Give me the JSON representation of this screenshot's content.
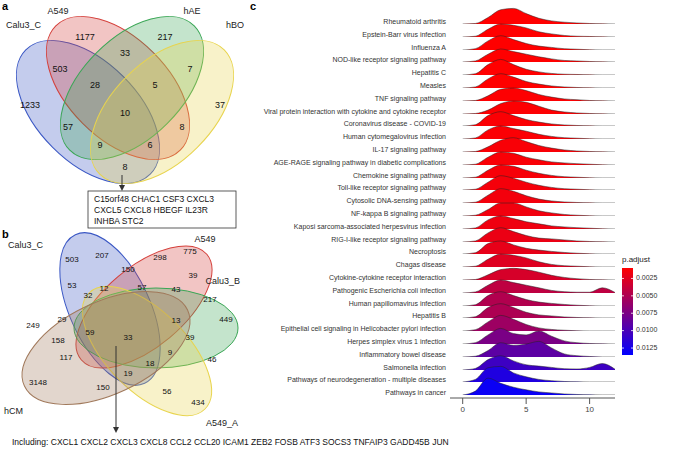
{
  "panel_a": {
    "panel_label": "a",
    "sets": [
      {
        "name": "Calu3_C",
        "color": "#3a57c4"
      },
      {
        "name": "A549",
        "color": "#d43f3a"
      },
      {
        "name": "hAE",
        "color": "#3aa655"
      },
      {
        "name": "hBO",
        "color": "#e8d44d"
      }
    ],
    "regions": [
      {
        "sets": [
          "Calu3_C"
        ],
        "count": 1233
      },
      {
        "sets": [
          "A549"
        ],
        "count": 1177
      },
      {
        "sets": [
          "hAE"
        ],
        "count": 217
      },
      {
        "sets": [
          "hBO"
        ],
        "count": 37
      },
      {
        "sets": [
          "Calu3_C",
          "A549"
        ],
        "count": 503
      },
      {
        "sets": [
          "A549",
          "hAE"
        ],
        "count": 33
      },
      {
        "sets": [
          "hAE",
          "hBO"
        ],
        "count": 7
      },
      {
        "sets": [
          "Calu3_C",
          "A549",
          "hAE"
        ],
        "count": 28
      },
      {
        "sets": [
          "A549",
          "hAE",
          "hBO"
        ],
        "count": 5
      },
      {
        "sets": [
          "Calu3_C",
          "hAE"
        ],
        "count": 57
      },
      {
        "sets": [
          "Calu3_C",
          "A549",
          "hAE",
          "hBO"
        ],
        "count": 10
      },
      {
        "sets": [
          "A549",
          "hBO"
        ],
        "count": 8
      },
      {
        "sets": [
          "Calu3_C",
          "hAE",
          "hBO"
        ],
        "count": 9
      },
      {
        "sets": [
          "Calu3_C",
          "A549",
          "hBO"
        ],
        "count": 6
      },
      {
        "sets": [
          "Calu3_C",
          "hBO"
        ],
        "count": 8
      }
    ],
    "genes": [
      "C15orf48",
      "CHAC1",
      "CSF3",
      "CXCL3",
      "CXCL5",
      "CXCL8",
      "HBEGF",
      "IL23R",
      "INHBA",
      "STC2"
    ]
  },
  "panel_b": {
    "panel_label": "b",
    "sets": [
      {
        "name": "Calu3_C",
        "color": "#3a57c4"
      },
      {
        "name": "A549",
        "color": "#d43f3a"
      },
      {
        "name": "Calu3_B",
        "color": "#3aa655"
      },
      {
        "name": "A549_A",
        "color": "#e8d44d"
      },
      {
        "name": "hCM",
        "color": "#a0785a"
      }
    ],
    "regions": [
      {
        "count": 503
      },
      {
        "count": 775
      },
      {
        "count": 449
      },
      {
        "count": 434
      },
      {
        "count": 3148
      },
      {
        "count": 207
      },
      {
        "count": 298
      },
      {
        "count": 150
      },
      {
        "count": 53
      },
      {
        "count": 32
      },
      {
        "count": 12
      },
      {
        "count": 57
      },
      {
        "count": 43
      },
      {
        "count": 39
      },
      {
        "count": 217
      },
      {
        "count": 249
      },
      {
        "count": 29
      },
      {
        "count": 158
      },
      {
        "count": 59
      },
      {
        "count": 33
      },
      {
        "count": 13
      },
      {
        "count": 39
      },
      {
        "count": 117
      },
      {
        "count": 9
      },
      {
        "count": 46
      },
      {
        "count": 150
      },
      {
        "count": 19
      },
      {
        "count": 18
      },
      {
        "count": 56
      }
    ],
    "note": "Including: CXCL1 CXCL2 CXCL3 CXCL8 CCL2 CCL20 ICAM1 ZEB2 FOSB ATF3 SOCS3 TNFAIP3 GADD45B JUN"
  },
  "chart_data": {
    "type": "ridgeline",
    "panel_label": "c",
    "x": [
      0,
      1,
      2,
      3,
      4,
      5,
      6,
      7,
      8,
      9,
      10,
      11,
      12
    ],
    "xlim": [
      -1,
      12
    ],
    "xticks": [
      0,
      5,
      10
    ],
    "ylim": [
      0,
      1
    ],
    "tick_labels": "x",
    "grid": false,
    "colorbar": {
      "title": "p.adjust",
      "range": [
        0.001,
        0.0135
      ],
      "ticks": [
        0.0025,
        {
          "value": 0.005,
          "label": "0.0050"
        },
        {
          "value": 0.0075,
          "label": "0.0075"
        },
        {
          "value": 0.01,
          "label": "0.0100"
        },
        0.0125
      ],
      "colors": [
        "#ff0000",
        "#0000ff"
      ]
    },
    "series": [
      {
        "name": "Rheumatoid arthritis",
        "p_adjust": 0.001,
        "values": [
          0,
          0.02,
          0.25,
          0.55,
          0.6,
          0.4,
          0.22,
          0.12,
          0.07,
          0.04,
          0.02,
          0.01,
          0
        ]
      },
      {
        "name": "Epstein-Barr virus infection",
        "p_adjust": 0.001,
        "values": [
          0,
          0.03,
          0.3,
          0.5,
          0.45,
          0.35,
          0.2,
          0.12,
          0.06,
          0.03,
          0.02,
          0.01,
          0
        ]
      },
      {
        "name": "Influenza A",
        "p_adjust": 0.001,
        "values": [
          0,
          0.05,
          0.35,
          0.55,
          0.4,
          0.25,
          0.15,
          0.1,
          0.05,
          0.03,
          0.01,
          0,
          0
        ]
      },
      {
        "name": "NOD-like receptor signaling pathway",
        "p_adjust": 0.001,
        "values": [
          0,
          0.04,
          0.3,
          0.5,
          0.4,
          0.3,
          0.2,
          0.12,
          0.06,
          0.04,
          0.02,
          0.01,
          0
        ]
      },
      {
        "name": "Hepatitis C",
        "p_adjust": 0.001,
        "values": [
          0,
          0.05,
          0.4,
          0.6,
          0.4,
          0.22,
          0.12,
          0.06,
          0.03,
          0.02,
          0.01,
          0,
          0
        ]
      },
      {
        "name": "Measles",
        "p_adjust": 0.001,
        "values": [
          0,
          0.04,
          0.35,
          0.55,
          0.42,
          0.25,
          0.15,
          0.08,
          0.04,
          0.02,
          0.01,
          0,
          0
        ]
      },
      {
        "name": "TNF signaling pathway",
        "p_adjust": 0.0011,
        "values": [
          0,
          0.02,
          0.2,
          0.45,
          0.5,
          0.4,
          0.25,
          0.15,
          0.08,
          0.05,
          0.02,
          0.01,
          0
        ]
      },
      {
        "name": "Viral protein interaction with cytokine and cytokine receptor",
        "p_adjust": 0.0011,
        "values": [
          0,
          0.02,
          0.15,
          0.4,
          0.5,
          0.45,
          0.3,
          0.15,
          0.08,
          0.04,
          0.02,
          0.01,
          0
        ]
      },
      {
        "name": "Coronavirus disease - COVID-19",
        "p_adjust": 0.0012,
        "values": [
          0,
          0.05,
          0.4,
          0.55,
          0.4,
          0.25,
          0.15,
          0.08,
          0.04,
          0.02,
          0.01,
          0,
          0
        ]
      },
      {
        "name": "Human cytomegalovirus infection",
        "p_adjust": 0.0012,
        "values": [
          0,
          0.04,
          0.35,
          0.5,
          0.4,
          0.3,
          0.18,
          0.1,
          0.05,
          0.03,
          0.01,
          0,
          0
        ]
      },
      {
        "name": "IL-17 signaling pathway",
        "p_adjust": 0.0013,
        "values": [
          0,
          0.02,
          0.2,
          0.45,
          0.55,
          0.4,
          0.25,
          0.15,
          0.08,
          0.04,
          0.02,
          0.01,
          0
        ]
      },
      {
        "name": "AGE-RAGE signaling pathway in diabetic complications",
        "p_adjust": 0.0013,
        "values": [
          0,
          0.03,
          0.3,
          0.5,
          0.45,
          0.3,
          0.2,
          0.12,
          0.08,
          0.05,
          0.03,
          0.01,
          0
        ]
      },
      {
        "name": "Chemokine signaling pathway",
        "p_adjust": 0.0014,
        "values": [
          0,
          0.03,
          0.3,
          0.5,
          0.45,
          0.3,
          0.18,
          0.1,
          0.05,
          0.03,
          0.01,
          0,
          0
        ]
      },
      {
        "name": "Toll-like receptor signaling pathway",
        "p_adjust": 0.0015,
        "values": [
          0,
          0.03,
          0.3,
          0.55,
          0.45,
          0.3,
          0.18,
          0.1,
          0.05,
          0.03,
          0.01,
          0,
          0
        ]
      },
      {
        "name": "Cytosolic DNA-sensing pathway",
        "p_adjust": 0.0016,
        "values": [
          0,
          0.03,
          0.3,
          0.55,
          0.45,
          0.28,
          0.15,
          0.08,
          0.04,
          0.02,
          0.01,
          0,
          0
        ]
      },
      {
        "name": "NF-kappa B signaling pathway",
        "p_adjust": 0.0017,
        "values": [
          0,
          0.03,
          0.25,
          0.5,
          0.5,
          0.35,
          0.2,
          0.12,
          0.06,
          0.03,
          0.01,
          0,
          0
        ]
      },
      {
        "name": "Kaposi sarcoma-associated herpesvirus infection",
        "p_adjust": 0.0018,
        "values": [
          0,
          0.04,
          0.35,
          0.5,
          0.4,
          0.28,
          0.2,
          0.12,
          0.08,
          0.05,
          0.03,
          0.01,
          0
        ]
      },
      {
        "name": "RIG-I-like receptor signaling pathway",
        "p_adjust": 0.002,
        "values": [
          0,
          0.04,
          0.35,
          0.55,
          0.4,
          0.25,
          0.15,
          0.12,
          0.08,
          0.04,
          0.02,
          0.01,
          0
        ]
      },
      {
        "name": "Necroptosis",
        "p_adjust": 0.0022,
        "values": [
          0,
          0.05,
          0.4,
          0.5,
          0.35,
          0.22,
          0.15,
          0.1,
          0.06,
          0.03,
          0.01,
          0,
          0
        ]
      },
      {
        "name": "Chagas disease",
        "p_adjust": 0.0026,
        "values": [
          0,
          0.03,
          0.3,
          0.5,
          0.45,
          0.35,
          0.2,
          0.1,
          0.05,
          0.03,
          0.01,
          0,
          0
        ]
      },
      {
        "name": "Cytokine-cytokine receptor interaction",
        "p_adjust": 0.003,
        "values": [
          0,
          0.02,
          0.2,
          0.4,
          0.45,
          0.4,
          0.3,
          0.18,
          0.1,
          0.05,
          0.02,
          0.01,
          0
        ]
      },
      {
        "name": "Pathogenic Escherichia coli infection",
        "p_adjust": 0.0042,
        "values": [
          0,
          0.04,
          0.3,
          0.5,
          0.4,
          0.3,
          0.2,
          0.1,
          0.05,
          0.03,
          0.03,
          0.2,
          0.02
        ]
      },
      {
        "name": "Human papillomavirus infection",
        "p_adjust": 0.0048,
        "values": [
          0,
          0.05,
          0.4,
          0.55,
          0.4,
          0.25,
          0.15,
          0.1,
          0.06,
          0.03,
          0.01,
          0,
          0
        ]
      },
      {
        "name": "Hepatitis B",
        "p_adjust": 0.005,
        "values": [
          0,
          0.05,
          0.4,
          0.55,
          0.4,
          0.22,
          0.12,
          0.08,
          0.04,
          0.02,
          0.01,
          0,
          0
        ]
      },
      {
        "name": "Epithelial cell signaling in Helicobacter pylori infection",
        "p_adjust": 0.0058,
        "values": [
          0,
          0.05,
          0.35,
          0.6,
          0.45,
          0.25,
          0.12,
          0.06,
          0.03,
          0.01,
          0,
          0,
          0
        ]
      },
      {
        "name": "Herpes simplex virus 1 infection",
        "p_adjust": 0.0075,
        "values": [
          0,
          0.05,
          0.35,
          0.6,
          0.4,
          0.35,
          0.5,
          0.3,
          0.12,
          0.05,
          0.02,
          0.01,
          0
        ]
      },
      {
        "name": "Inflammatory bowel disease",
        "p_adjust": 0.009,
        "values": [
          0,
          0.03,
          0.25,
          0.55,
          0.45,
          0.5,
          0.6,
          0.35,
          0.12,
          0.05,
          0.02,
          0,
          0
        ]
      },
      {
        "name": "Salmonella infection",
        "p_adjust": 0.0105,
        "values": [
          0,
          0.06,
          0.4,
          0.55,
          0.35,
          0.2,
          0.15,
          0.1,
          0.05,
          0.04,
          0.1,
          0.25,
          0.03
        ]
      },
      {
        "name": "Pathways of neurodegeneration - multiple diseases",
        "p_adjust": 0.012,
        "values": [
          0,
          0.1,
          0.55,
          0.6,
          0.35,
          0.2,
          0.1,
          0.05,
          0.02,
          0.01,
          0,
          0,
          0
        ]
      },
      {
        "name": "Pathways in cancer",
        "p_adjust": 0.013,
        "values": [
          0,
          0.15,
          0.65,
          0.45,
          0.3,
          0.2,
          0.12,
          0.08,
          0.04,
          0.02,
          0.01,
          0,
          0
        ]
      }
    ]
  }
}
